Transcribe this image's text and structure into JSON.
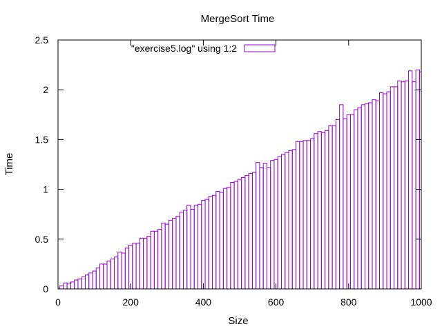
{
  "chart_data": {
    "type": "bar",
    "title": "MergeSort Time",
    "xlabel": "Size",
    "ylabel": "Time",
    "xlim": [
      0,
      1000
    ],
    "ylim": [
      0,
      2.5
    ],
    "xticks": [
      "0",
      "200",
      "400",
      "600",
      "800",
      "1000"
    ],
    "yticks": [
      "0",
      "0.5",
      "1",
      "1.5",
      "2",
      "2.5"
    ],
    "grid": false,
    "legend": {
      "position": "top",
      "entries": [
        "\"exercise5.log\" using 1:2"
      ]
    },
    "bar_color": "#9400d3",
    "series": [
      {
        "name": "\"exercise5.log\" using 1:2",
        "x": [
          10,
          20,
          30,
          40,
          50,
          60,
          70,
          80,
          90,
          100,
          110,
          120,
          130,
          140,
          150,
          160,
          170,
          180,
          190,
          200,
          210,
          220,
          230,
          240,
          250,
          260,
          270,
          280,
          290,
          300,
          310,
          320,
          330,
          340,
          350,
          360,
          370,
          380,
          390,
          400,
          410,
          420,
          430,
          440,
          450,
          460,
          470,
          480,
          490,
          500,
          510,
          520,
          530,
          540,
          550,
          560,
          570,
          580,
          590,
          600,
          610,
          620,
          630,
          640,
          650,
          660,
          670,
          680,
          690,
          700,
          710,
          720,
          730,
          740,
          750,
          760,
          770,
          780,
          790,
          800,
          810,
          820,
          830,
          840,
          850,
          860,
          870,
          880,
          890,
          900,
          910,
          920,
          930,
          940,
          950,
          960,
          970,
          980,
          990,
          1000
        ],
        "values": [
          0.03,
          0.06,
          0.06,
          0.07,
          0.09,
          0.1,
          0.12,
          0.14,
          0.16,
          0.18,
          0.21,
          0.25,
          0.25,
          0.28,
          0.3,
          0.32,
          0.37,
          0.36,
          0.41,
          0.44,
          0.46,
          0.46,
          0.51,
          0.51,
          0.53,
          0.58,
          0.58,
          0.6,
          0.66,
          0.65,
          0.69,
          0.71,
          0.73,
          0.77,
          0.79,
          0.84,
          0.8,
          0.84,
          0.85,
          0.89,
          0.9,
          0.93,
          0.94,
          0.98,
          0.97,
          1.01,
          1.02,
          1.07,
          1.08,
          1.1,
          1.12,
          1.14,
          1.16,
          1.17,
          1.27,
          1.22,
          1.26,
          1.22,
          1.29,
          1.3,
          1.33,
          1.35,
          1.37,
          1.39,
          1.4,
          1.48,
          1.48,
          1.49,
          1.49,
          1.51,
          1.56,
          1.58,
          1.57,
          1.59,
          1.64,
          1.64,
          1.7,
          1.85,
          1.71,
          1.75,
          1.75,
          1.8,
          1.82,
          1.85,
          1.86,
          1.87,
          1.9,
          1.89,
          1.97,
          1.96,
          1.98,
          2.03,
          2.03,
          2.09,
          2.08,
          2.09,
          2.19,
          2.08,
          2.2,
          2.18
        ]
      }
    ]
  }
}
